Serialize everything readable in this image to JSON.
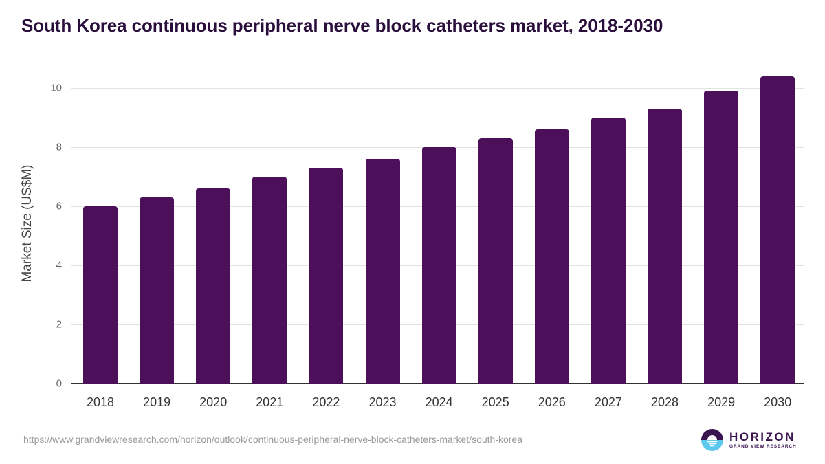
{
  "title": "South Korea continuous peripheral nerve block catheters market, 2018-2030",
  "y_axis_label": "Market Size (US$M)",
  "source_url": "https://www.grandviewresearch.com/horizon/outlook/continuous-peripheral-nerve-block-catheters-market/south-korea",
  "logo": {
    "name": "HORIZON",
    "sub": "GRAND VIEW RESEARCH"
  },
  "colors": {
    "bar": "#4b1059",
    "title": "#2a0f3d",
    "logo_top": "#3a1550",
    "logo_bottom": "#5cc8ee"
  },
  "y_ticks": [
    "0",
    "2",
    "4",
    "6",
    "8",
    "10"
  ],
  "chart_data": {
    "type": "bar",
    "title": "South Korea continuous peripheral nerve block catheters market, 2018-2030",
    "xlabel": "",
    "ylabel": "Market Size (US$M)",
    "categories": [
      "2018",
      "2019",
      "2020",
      "2021",
      "2022",
      "2023",
      "2024",
      "2025",
      "2026",
      "2027",
      "2028",
      "2029",
      "2030"
    ],
    "values": [
      6.0,
      6.3,
      6.6,
      7.0,
      7.3,
      7.6,
      8.0,
      8.3,
      8.6,
      9.0,
      9.3,
      9.9,
      10.4
    ],
    "ylim": [
      0,
      11
    ],
    "y_ticks": [
      0,
      2,
      4,
      6,
      8,
      10
    ],
    "grid": true,
    "legend": null
  }
}
